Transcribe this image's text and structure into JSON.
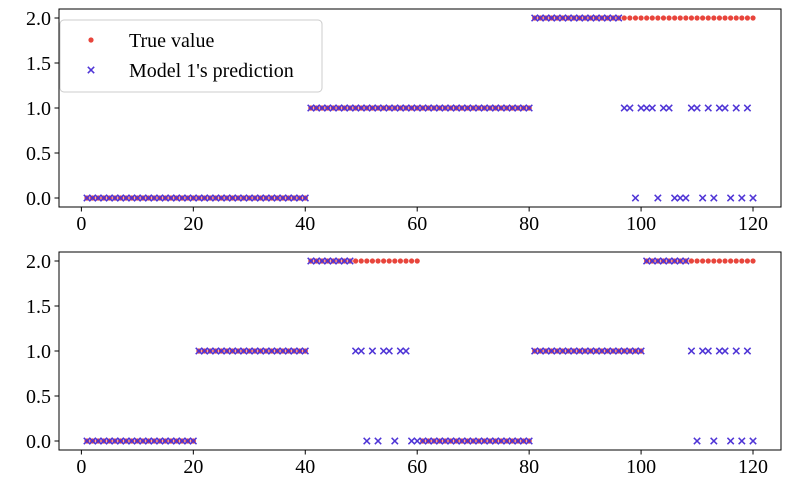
{
  "colors": {
    "true_value": "#e8453c",
    "prediction": "#4f35d6",
    "axes": "#000000",
    "legend_border": "#cccccc",
    "background": "#ffffff"
  },
  "legend": {
    "location": "upper-left",
    "true_label": "True value",
    "pred_label": "Model 1's prediction"
  },
  "chart_data": [
    {
      "type": "scatter",
      "title": "",
      "xlabel": "",
      "ylabel": "",
      "xlim": [
        -4,
        125
      ],
      "ylim": [
        -0.1,
        2.1
      ],
      "x_ticks": [
        0,
        20,
        40,
        60,
        80,
        100,
        120
      ],
      "y_ticks": [
        0.0,
        0.5,
        1.0,
        1.5,
        2.0
      ],
      "x_tick_labels": [
        "0",
        "20",
        "40",
        "60",
        "80",
        "100",
        "120"
      ],
      "y_tick_labels": [
        "0.0",
        "0.5",
        "1.0",
        "1.5",
        "2.0"
      ],
      "series": [
        {
          "name": "True value",
          "marker": "dot",
          "segments": [
            {
              "from": 1,
              "to": 40,
              "value": 0
            },
            {
              "from": 41,
              "to": 80,
              "value": 1
            },
            {
              "from": 81,
              "to": 120,
              "value": 2
            }
          ]
        },
        {
          "name": "Model 1's prediction",
          "marker": "x",
          "segments": [
            {
              "from": 1,
              "to": 40,
              "value": 0
            },
            {
              "from": 41,
              "to": 80,
              "value": 1
            },
            {
              "from": 81,
              "to": 96,
              "value": 2
            }
          ],
          "points": [
            [
              97,
              1
            ],
            [
              98,
              1
            ],
            [
              99,
              0
            ],
            [
              100,
              1
            ],
            [
              101,
              1
            ],
            [
              102,
              1
            ],
            [
              103,
              0
            ],
            [
              104,
              1
            ],
            [
              105,
              1
            ],
            [
              106,
              0
            ],
            [
              107,
              0
            ],
            [
              108,
              0
            ],
            [
              109,
              1
            ],
            [
              110,
              1
            ],
            [
              111,
              0
            ],
            [
              112,
              1
            ],
            [
              113,
              0
            ],
            [
              114,
              1
            ],
            [
              115,
              1
            ],
            [
              116,
              0
            ],
            [
              117,
              1
            ],
            [
              118,
              0
            ],
            [
              119,
              1
            ],
            [
              120,
              0
            ]
          ]
        }
      ]
    },
    {
      "type": "scatter",
      "title": "",
      "xlabel": "",
      "ylabel": "",
      "xlim": [
        -4,
        125
      ],
      "ylim": [
        -0.1,
        2.1
      ],
      "x_ticks": [
        0,
        20,
        40,
        60,
        80,
        100,
        120
      ],
      "y_ticks": [
        0.0,
        0.5,
        1.0,
        1.5,
        2.0
      ],
      "x_tick_labels": [
        "0",
        "20",
        "40",
        "60",
        "80",
        "100",
        "120"
      ],
      "y_tick_labels": [
        "0.0",
        "0.5",
        "1.0",
        "1.5",
        "2.0"
      ],
      "series": [
        {
          "name": "True value",
          "marker": "dot",
          "segments": [
            {
              "from": 1,
              "to": 20,
              "value": 0
            },
            {
              "from": 21,
              "to": 40,
              "value": 1
            },
            {
              "from": 41,
              "to": 60,
              "value": 2
            },
            {
              "from": 61,
              "to": 80,
              "value": 0
            },
            {
              "from": 81,
              "to": 100,
              "value": 1
            },
            {
              "from": 101,
              "to": 120,
              "value": 2
            }
          ]
        },
        {
          "name": "Model 1's prediction",
          "marker": "x",
          "segments": [
            {
              "from": 1,
              "to": 20,
              "value": 0
            },
            {
              "from": 21,
              "to": 40,
              "value": 1
            },
            {
              "from": 41,
              "to": 48,
              "value": 2
            },
            {
              "from": 61,
              "to": 80,
              "value": 0
            },
            {
              "from": 81,
              "to": 100,
              "value": 1
            },
            {
              "from": 101,
              "to": 108,
              "value": 2
            }
          ],
          "points": [
            [
              49,
              1
            ],
            [
              50,
              1
            ],
            [
              51,
              0
            ],
            [
              52,
              1
            ],
            [
              53,
              0
            ],
            [
              54,
              1
            ],
            [
              55,
              1
            ],
            [
              56,
              0
            ],
            [
              57,
              1
            ],
            [
              58,
              1
            ],
            [
              59,
              0
            ],
            [
              60,
              0
            ],
            [
              109,
              1
            ],
            [
              110,
              0
            ],
            [
              111,
              1
            ],
            [
              112,
              1
            ],
            [
              113,
              0
            ],
            [
              114,
              1
            ],
            [
              115,
              1
            ],
            [
              116,
              0
            ],
            [
              117,
              1
            ],
            [
              118,
              0
            ],
            [
              119,
              1
            ],
            [
              120,
              0
            ]
          ]
        }
      ]
    }
  ]
}
